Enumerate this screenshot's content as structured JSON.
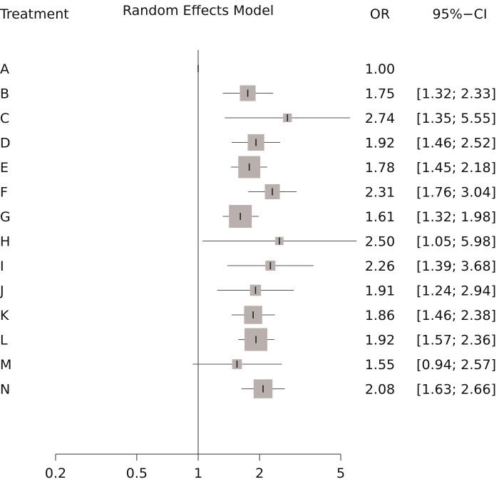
{
  "chart_data": {
    "type": "forest",
    "title": "Random Effects Model",
    "headers": {
      "treatment": "Treatment",
      "or": "OR",
      "ci": "95%−CI"
    },
    "x_scale": "log",
    "xlim": [
      0.2,
      5
    ],
    "x_ticks": [
      0.2,
      0.5,
      1,
      2,
      5
    ],
    "x_tick_labels": [
      "0.2",
      "0.5",
      "1",
      "2",
      "5"
    ],
    "reference_line": 1,
    "colors": {
      "box": "#b9b0ad",
      "line": "#555555",
      "point": "#222222"
    },
    "rows": [
      {
        "treatment": "A",
        "or": 1.0,
        "lower": null,
        "upper": null,
        "or_label": "1.00",
        "ci_label": "",
        "weight": 0
      },
      {
        "treatment": "B",
        "or": 1.75,
        "lower": 1.32,
        "upper": 2.33,
        "or_label": "1.75",
        "ci_label": "[1.32; 2.33]",
        "weight": 0.55
      },
      {
        "treatment": "C",
        "or": 2.74,
        "lower": 1.35,
        "upper": 5.55,
        "or_label": "2.74",
        "ci_label": "[1.35; 5.55]",
        "weight": 0.1
      },
      {
        "treatment": "D",
        "or": 1.92,
        "lower": 1.46,
        "upper": 2.52,
        "or_label": "1.92",
        "ci_label": "[1.46; 2.52]",
        "weight": 0.6
      },
      {
        "treatment": "E",
        "or": 1.78,
        "lower": 1.45,
        "upper": 2.18,
        "or_label": "1.78",
        "ci_label": "[1.45; 2.18]",
        "weight": 0.95
      },
      {
        "treatment": "F",
        "or": 2.31,
        "lower": 1.76,
        "upper": 3.04,
        "or_label": "2.31",
        "ci_label": "[1.76; 3.04]",
        "weight": 0.5
      },
      {
        "treatment": "G",
        "or": 1.61,
        "lower": 1.32,
        "upper": 1.98,
        "or_label": "1.61",
        "ci_label": "[1.32; 1.98]",
        "weight": 1.0
      },
      {
        "treatment": "H",
        "or": 2.5,
        "lower": 1.05,
        "upper": 5.98,
        "or_label": "2.50",
        "ci_label": "[1.05; 5.98]",
        "weight": 0.07
      },
      {
        "treatment": "I",
        "or": 2.26,
        "lower": 1.39,
        "upper": 3.68,
        "or_label": "2.26",
        "ci_label": "[1.39; 3.68]",
        "weight": 0.18
      },
      {
        "treatment": "J",
        "or": 1.91,
        "lower": 1.24,
        "upper": 2.94,
        "or_label": "1.91",
        "ci_label": "[1.24; 2.94]",
        "weight": 0.25
      },
      {
        "treatment": "K",
        "or": 1.86,
        "lower": 1.46,
        "upper": 2.38,
        "or_label": "1.86",
        "ci_label": "[1.46; 2.38]",
        "weight": 0.7
      },
      {
        "treatment": "L",
        "or": 1.92,
        "lower": 1.57,
        "upper": 2.36,
        "or_label": "1.92",
        "ci_label": "[1.57; 2.36]",
        "weight": 1.0
      },
      {
        "treatment": "M",
        "or": 1.55,
        "lower": 0.94,
        "upper": 2.57,
        "or_label": "1.55",
        "ci_label": "[0.94; 2.57]",
        "weight": 0.17
      },
      {
        "treatment": "N",
        "or": 2.08,
        "lower": 1.63,
        "upper": 2.66,
        "or_label": "2.08",
        "ci_label": "[1.63; 2.66]",
        "weight": 0.75
      }
    ]
  }
}
